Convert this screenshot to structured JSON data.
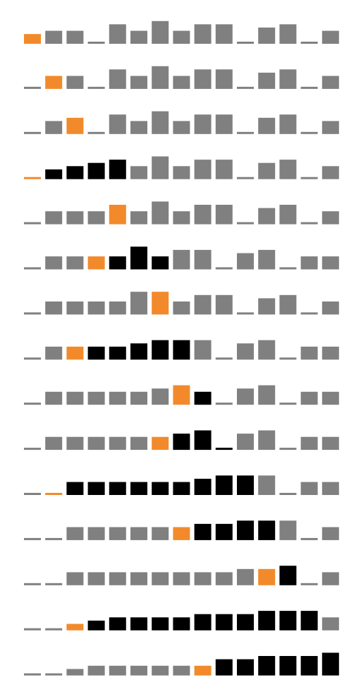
{
  "colors": {
    "background": "#ffffff",
    "unsorted": "#808080",
    "active": "#f28a2b",
    "sorted": "#000000"
  },
  "chart_data": {
    "type": "bar",
    "value_scale": [
      0,
      10
    ],
    "state_legend": {
      "u": "unsorted",
      "a": "active",
      "s": "sorted"
    },
    "rows": [
      {
        "values": [
          3,
          4,
          4,
          0,
          6,
          4,
          7,
          4,
          6,
          6,
          0,
          5,
          6,
          0,
          4
        ],
        "states": "auuuuuuuuuuuuuu"
      },
      {
        "values": [
          0,
          4,
          4,
          0,
          6,
          4,
          7,
          4,
          6,
          6,
          0,
          5,
          6,
          0,
          4
        ],
        "states": "uauuuuuuuuuuuuu"
      },
      {
        "values": [
          0,
          4,
          5,
          0,
          6,
          4,
          7,
          4,
          6,
          6,
          0,
          5,
          6,
          0,
          4
        ],
        "states": "uuauuuuuuuuuuuu"
      },
      {
        "values": [
          0,
          3,
          4,
          5,
          6,
          4,
          7,
          4,
          6,
          6,
          0,
          5,
          6,
          0,
          4
        ],
        "states": "assssuuuuuuuuuu"
      },
      {
        "values": [
          0,
          4,
          4,
          4,
          6,
          4,
          7,
          4,
          6,
          6,
          0,
          5,
          6,
          0,
          4
        ],
        "states": "uuuuauuuuuuuuuu"
      },
      {
        "values": [
          0,
          4,
          4,
          4,
          4,
          7,
          4,
          6,
          6,
          0,
          5,
          6,
          0,
          4,
          4
        ],
        "states": "uuuasssuuuuuuuu"
      },
      {
        "values": [
          0,
          4,
          4,
          4,
          4,
          7,
          7,
          4,
          6,
          6,
          0,
          5,
          6,
          0,
          4
        ],
        "states": "uuuuuuauuuuuuuu"
      },
      {
        "values": [
          0,
          4,
          4,
          4,
          4,
          5,
          6,
          6,
          6,
          0,
          5,
          6,
          0,
          4,
          4
        ],
        "states": "uuasssssuuuuuuu"
      },
      {
        "values": [
          0,
          4,
          4,
          4,
          4,
          4,
          5,
          6,
          4,
          0,
          5,
          6,
          0,
          4,
          4
        ],
        "states": "uuuuuuuasuuuuuu"
      },
      {
        "values": [
          0,
          4,
          4,
          4,
          4,
          4,
          4,
          5,
          6,
          0,
          5,
          6,
          0,
          4,
          4
        ],
        "states": "uuuuuuasssuuuuu"
      },
      {
        "values": [
          0,
          0,
          4,
          4,
          4,
          4,
          4,
          4,
          5,
          6,
          6,
          6,
          0,
          4,
          4
        ],
        "states": "uasssssssssuuuu"
      },
      {
        "values": [
          0,
          0,
          4,
          4,
          4,
          4,
          4,
          4,
          5,
          5,
          6,
          6,
          6,
          0,
          4
        ],
        "states": "uuuuuuuassssuuu"
      },
      {
        "values": [
          0,
          0,
          4,
          4,
          4,
          4,
          4,
          4,
          4,
          4,
          5,
          5,
          6,
          0,
          4
        ],
        "states": "uuuuuuuuuuuasuu"
      },
      {
        "values": [
          0,
          0,
          2,
          3,
          4,
          4,
          4,
          4,
          5,
          5,
          5,
          6,
          6,
          6,
          4
        ],
        "states": "uuasssssssssssu"
      },
      {
        "values": [
          0,
          0,
          2,
          3,
          3,
          3,
          3,
          3,
          3,
          5,
          5,
          6,
          6,
          6,
          7
        ],
        "states": "uuuuuuuuassssss"
      }
    ]
  }
}
